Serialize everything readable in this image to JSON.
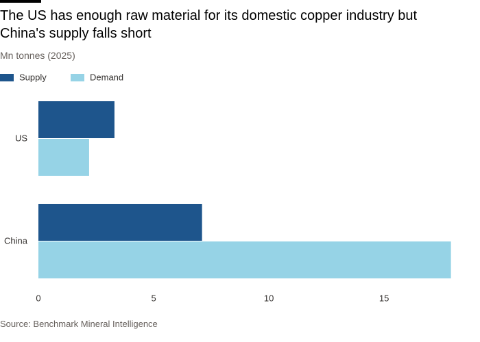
{
  "chart_data": {
    "type": "bar",
    "orientation": "horizontal",
    "title": "The US has enough raw material for its domestic copper industry but China's supply falls short",
    "subtitle": "Mn tonnes (2025)",
    "source": "Source: Benchmark Mineral Intelligence",
    "categories": [
      "US",
      "China"
    ],
    "series": [
      {
        "name": "Supply",
        "color": "#1e558c",
        "values": [
          3.3,
          7.1
        ]
      },
      {
        "name": "Demand",
        "color": "#96d3e6",
        "values": [
          2.2,
          17.9
        ]
      }
    ],
    "xlim": [
      0,
      18
    ],
    "xticks": [
      0,
      5,
      10,
      15
    ],
    "grid": false
  }
}
